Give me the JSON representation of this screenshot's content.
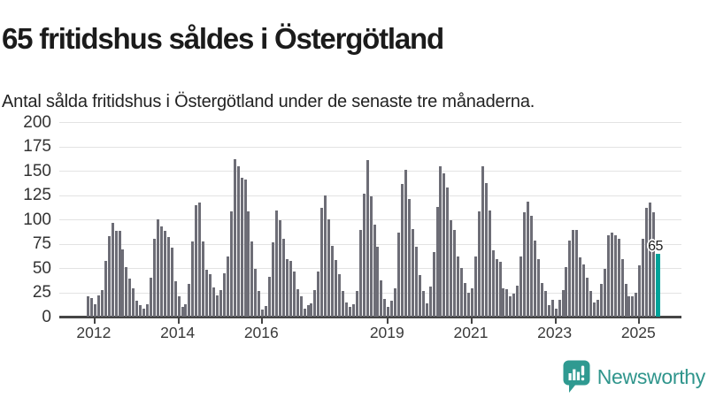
{
  "page": {
    "title": "65 fritidshus såldes i Östergötland",
    "subtitle": "Antal sålda fritidshus i Östergötland under de senaste tre månaderna."
  },
  "chart_data": {
    "type": "bar",
    "title": "65 fritidshus såldes i Östergötland",
    "subtitle": "Antal sålda fritidshus i Östergötland under de senaste tre månaderna.",
    "ylabel": "",
    "xlabel": "",
    "ylim": [
      0,
      200
    ],
    "y_ticks": [
      0,
      25,
      50,
      75,
      100,
      125,
      150,
      175,
      200
    ],
    "grid": true,
    "legend_position": "none",
    "x_tick_labels": [
      "2012",
      "2014",
      "2016",
      "2019",
      "2021",
      "2023",
      "2025"
    ],
    "x_tick_bar_indices": [
      2,
      26,
      50,
      86,
      110,
      134,
      158
    ],
    "values": [
      21,
      19,
      13,
      22,
      27,
      57,
      83,
      96,
      88,
      88,
      69,
      51,
      39,
      29,
      16,
      12,
      8,
      13,
      40,
      80,
      100,
      93,
      88,
      82,
      71,
      36,
      21,
      10,
      13,
      34,
      77,
      115,
      117,
      77,
      48,
      44,
      30,
      22,
      27,
      45,
      62,
      108,
      162,
      155,
      143,
      141,
      108,
      77,
      49,
      26,
      7,
      11,
      41,
      76,
      109,
      99,
      80,
      59,
      57,
      46,
      28,
      21,
      8,
      12,
      14,
      27,
      46,
      112,
      125,
      100,
      73,
      58,
      44,
      26,
      15,
      10,
      13,
      26,
      89,
      126,
      161,
      124,
      95,
      72,
      37,
      18,
      10,
      16,
      29,
      86,
      136,
      151,
      121,
      90,
      72,
      43,
      26,
      14,
      31,
      66,
      113,
      155,
      147,
      133,
      99,
      89,
      62,
      50,
      35,
      25,
      29,
      62,
      108,
      155,
      137,
      109,
      68,
      59,
      56,
      29,
      28,
      21,
      24,
      32,
      62,
      107,
      118,
      104,
      78,
      59,
      35,
      26,
      12,
      17,
      8,
      17,
      27,
      51,
      78,
      89,
      89,
      61,
      54,
      40,
      26,
      15,
      17,
      34,
      49,
      84,
      86,
      84,
      80,
      59,
      34,
      21,
      21,
      25,
      53,
      80,
      112,
      117,
      107,
      65
    ],
    "highlight_last_bar": true,
    "annotation": {
      "label": "65",
      "value": 65
    },
    "colors": {
      "bar": "#6d6d76",
      "highlight": "#00a39a",
      "gridline": "#e3e3e3",
      "axis": "#454545",
      "annotation_text": "#1d1d1d"
    }
  },
  "footer": {
    "brand": "Newsworthy",
    "brand_color": "#2f958c",
    "logo_icon": "bar-chart-speech-bubble"
  }
}
